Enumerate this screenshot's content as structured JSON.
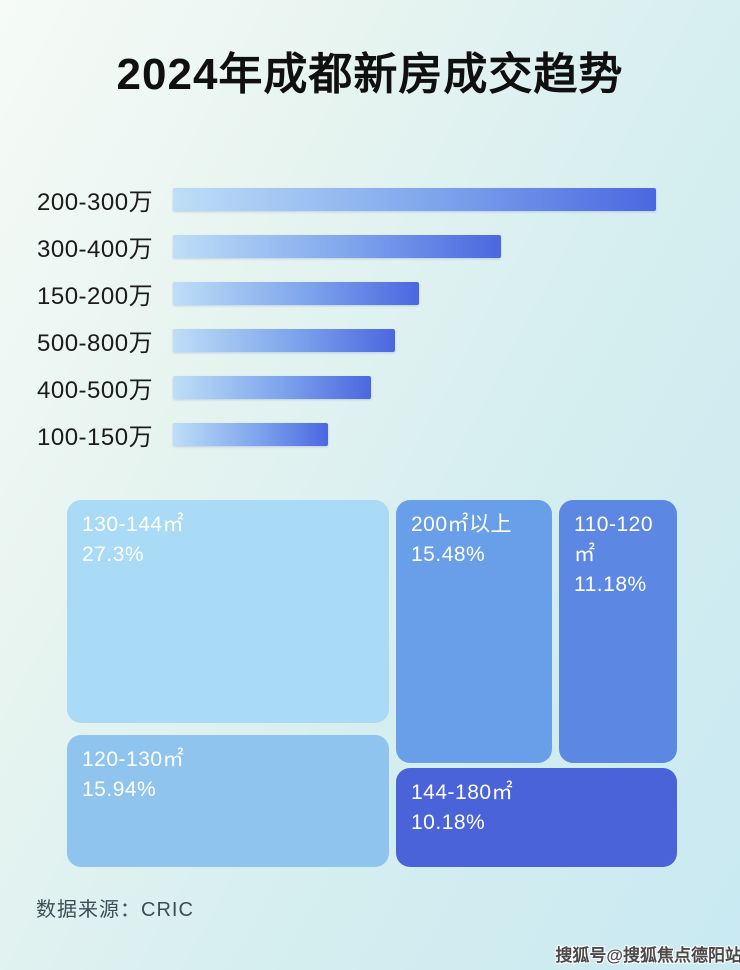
{
  "title": "2024年成都新房成交趋势",
  "chart_data": [
    {
      "type": "bar",
      "orientation": "horizontal",
      "title": "按总价段成交(无数值标注, 长度按占比)",
      "categories": [
        "200-300万",
        "300-400万",
        "150-200万",
        "500-800万",
        "400-500万",
        "100-150万"
      ],
      "values": [
        100,
        68,
        51,
        46,
        41,
        32
      ],
      "value_unit": "percent_of_longest_bar",
      "value_labels_shown": false,
      "bar_gradient": [
        "#bedef7",
        "#4c67e0"
      ],
      "grid": false,
      "legend": false
    },
    {
      "type": "treemap",
      "title": "按面积段成交占比",
      "cells": [
        {
          "label": "130-144㎡",
          "pct_label": "27.3%",
          "value": 27.3,
          "color": "#a9daf6"
        },
        {
          "label": "120-130㎡",
          "pct_label": "15.94%",
          "value": 15.94,
          "color": "#8fc4ef"
        },
        {
          "label": "200㎡以上",
          "pct_label": "15.48%",
          "value": 15.48,
          "color": "#699fe8"
        },
        {
          "label": "110-120㎡",
          "pct_label": "11.18%",
          "value": 11.18,
          "color": "#5c88e3"
        },
        {
          "label": "144-180㎡",
          "pct_label": "10.18%",
          "value": 10.18,
          "color": "#4a63d8"
        }
      ],
      "text_color": "#ffffff",
      "legend": false
    }
  ],
  "footer": {
    "source_label": "数据来源：CRIC"
  },
  "watermark": "搜狐号@搜狐焦点德阳站",
  "colors": {
    "background_start": "#f6fbf7",
    "background_end": "#c9e9f2",
    "title_color": "#101010",
    "bar_label_color": "#1b1b1b",
    "source_color": "#3d4f55"
  }
}
